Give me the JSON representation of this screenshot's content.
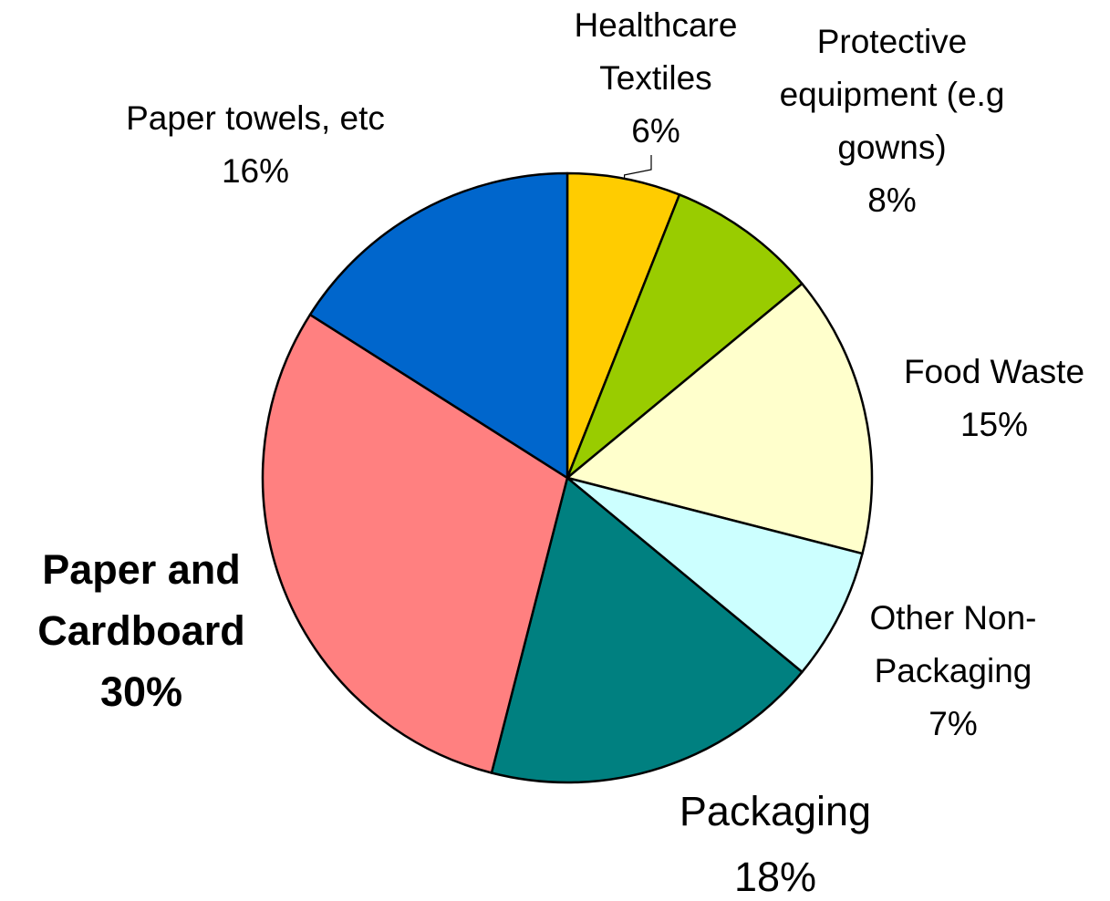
{
  "chart_data": {
    "type": "pie",
    "title": "",
    "slices": [
      {
        "label_lines": [
          "Healthcare",
          "Textiles"
        ],
        "pct_label": "6%",
        "value": 6,
        "color": "#FFCC00"
      },
      {
        "label_lines": [
          "Protective",
          "equipment (e.g",
          "gowns)"
        ],
        "pct_label": "8%",
        "value": 8,
        "color": "#99CC00"
      },
      {
        "label_lines": [
          "Food Waste"
        ],
        "pct_label": "15%",
        "value": 15,
        "color": "#FFFFCC"
      },
      {
        "label_lines": [
          "Other Non-",
          "Packaging"
        ],
        "pct_label": "7%",
        "value": 7,
        "color": "#CCFFFF"
      },
      {
        "label_lines": [
          "Packaging"
        ],
        "pct_label": "18%",
        "value": 18,
        "color": "#008080"
      },
      {
        "label_lines": [
          "Paper and",
          "Cardboard"
        ],
        "pct_label": "30%",
        "value": 30,
        "color": "#FF8080",
        "emphasis": "bold"
      },
      {
        "label_lines": [
          "Paper towels, etc"
        ],
        "pct_label": "16%",
        "value": 16,
        "color": "#0066CC"
      }
    ],
    "start_angle_deg": 0,
    "direction": "clockwise",
    "legend": "none",
    "slice_outline_color": "#000000"
  }
}
